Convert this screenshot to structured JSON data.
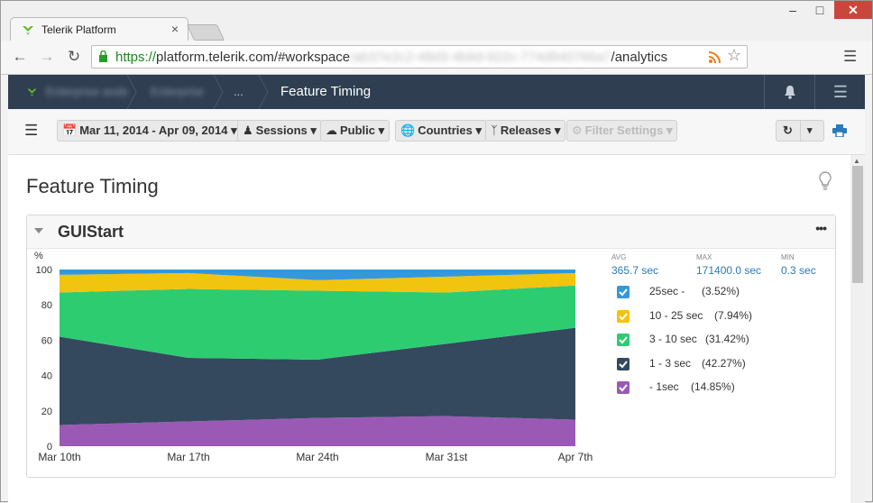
{
  "browser": {
    "tab_title": "Telerik Platform",
    "url_scheme": "https://",
    "url_host": "platform.telerik.com",
    "url_path": "/#workspace",
    "url_hidden": "/ab37e2c2-48d3-4b9d-922c-774d940766a7",
    "url_tail": "/analytics",
    "window_min": "–",
    "window_max": "□",
    "window_close": "✕"
  },
  "header": {
    "crumb1": "Enterprise ands",
    "crumb2": "Enterprise",
    "crumb3": "...",
    "current": "Feature Timing"
  },
  "toolbar": {
    "date_range": "Mar 11, 2014 - Apr 09, 2014",
    "sessions": "Sessions",
    "public": "Public",
    "countries": "Countries",
    "releases": "Releases",
    "filter_settings": "Filter Settings"
  },
  "page": {
    "title": "Feature Timing"
  },
  "panel": {
    "title": "GUIStart",
    "stats": [
      {
        "label": "AVG",
        "value": "365.7 sec"
      },
      {
        "label": "MAX",
        "value": "171400.0 sec"
      },
      {
        "label": "MIN",
        "value": "0.3 sec"
      }
    ],
    "legend": [
      {
        "name": "25sec -",
        "pct": "(3.52%)",
        "color": "#3498db"
      },
      {
        "name": "10 - 25 sec",
        "pct": "(7.94%)",
        "color": "#f1c40f"
      },
      {
        "name": "3 - 10 sec",
        "pct": "(31.42%)",
        "color": "#2ecc71"
      },
      {
        "name": "1 - 3 sec",
        "pct": "(42.27%)",
        "color": "#34495e"
      },
      {
        "name": " - 1sec",
        "pct": "(14.85%)",
        "color": "#9b59b6"
      }
    ]
  },
  "chart_data": {
    "type": "area",
    "stacked": true,
    "ylabel": "%",
    "ylim": [
      0,
      100
    ],
    "yticks": [
      0,
      20,
      40,
      60,
      80,
      100
    ],
    "x": [
      "Mar 10th",
      "Mar 17th",
      "Mar 24th",
      "Mar 31st",
      "Apr 7th"
    ],
    "series": [
      {
        "name": " - 1sec",
        "color": "#9b59b6",
        "values": [
          12,
          14,
          16,
          17,
          15
        ]
      },
      {
        "name": "1 - 3 sec",
        "color": "#34495e",
        "values": [
          50,
          36,
          33,
          41,
          52
        ]
      },
      {
        "name": "3 - 10 sec",
        "color": "#2ecc71",
        "values": [
          25,
          39,
          39,
          29,
          24
        ]
      },
      {
        "name": "10 - 25 sec",
        "color": "#f1c40f",
        "values": [
          10,
          9,
          6,
          9,
          7
        ]
      },
      {
        "name": "25sec -",
        "color": "#3498db",
        "values": [
          3,
          2,
          6,
          4,
          2
        ]
      }
    ]
  }
}
